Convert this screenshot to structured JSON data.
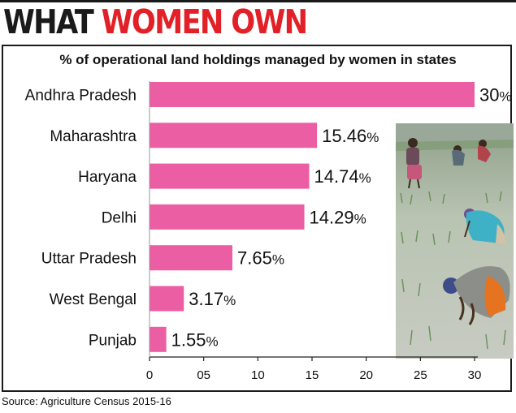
{
  "headline": {
    "part1": "WHAT ",
    "part2": "WOMEN OWN"
  },
  "source": "Source: Agriculture Census 2015-16",
  "colors": {
    "bar": "#ec5ea4",
    "accent": "#e12127"
  },
  "chart_data": {
    "type": "bar",
    "orientation": "horizontal",
    "title": "% of operational land holdings managed by women in states",
    "categories": [
      "Andhra Pradesh",
      "Maharashtra",
      "Haryana",
      "Delhi",
      "Uttar Pradesh",
      "West Bengal",
      "Punjab"
    ],
    "values": [
      30,
      15.46,
      14.74,
      14.29,
      7.65,
      3.17,
      1.55
    ],
    "value_labels": [
      "30",
      "15.46",
      "14.74",
      "14.29",
      "7.65",
      "3.17",
      "1.55"
    ],
    "value_suffix": "%",
    "xlim": [
      0,
      30
    ],
    "x_ticks": [
      "0",
      "05",
      "10",
      "15",
      "20",
      "25",
      "30"
    ],
    "grid": false,
    "legend": "none"
  },
  "photo": {
    "subject": "women transplanting rice seedlings in a paddy field"
  }
}
